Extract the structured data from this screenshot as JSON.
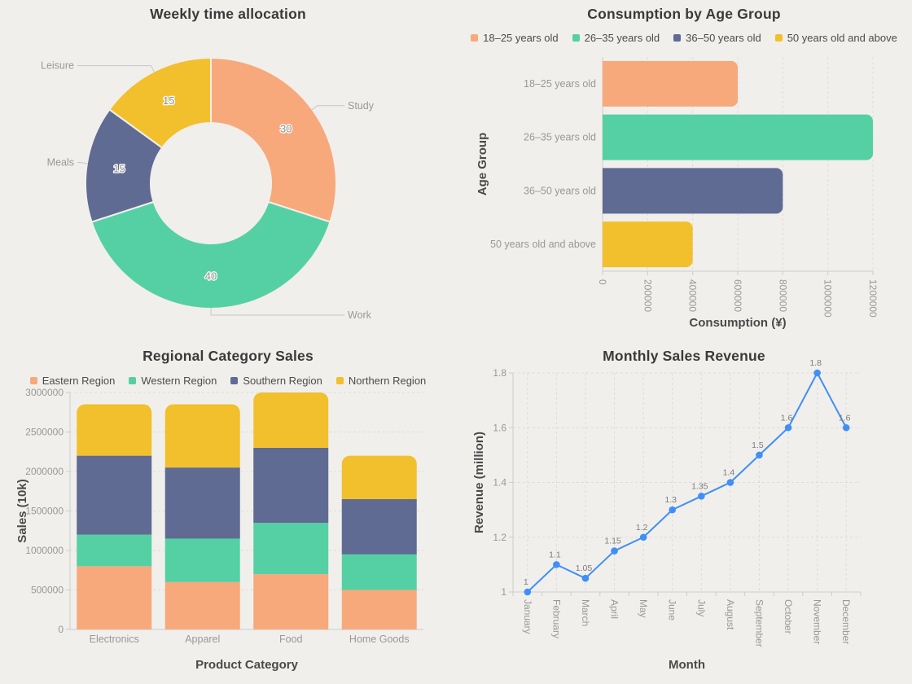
{
  "background": "#f1efec",
  "palette": {
    "peach": "#f7a97c",
    "green": "#55d0a4",
    "slate": "#5f6b92",
    "yellow": "#f2c02c",
    "blue": "#3f8ff7"
  },
  "chart_data": [
    {
      "id": "weekly-time-allocation",
      "type": "pie",
      "donut": true,
      "title": "Weekly time allocation",
      "labels": [
        "Study",
        "Work",
        "Meals",
        "Leisure"
      ],
      "values": [
        30,
        40,
        15,
        15
      ],
      "colors": [
        "#f7a97c",
        "#55d0a4",
        "#5f6b92",
        "#f2c02c"
      ],
      "legend_position": "none"
    },
    {
      "id": "consumption-by-age-group",
      "type": "bar",
      "orientation": "horizontal",
      "title": "Consumption by Age Group",
      "categories": [
        "18–25 years old",
        "26–35 years old",
        "36–50 years old",
        "50 years old and above"
      ],
      "values": [
        600000,
        1200000,
        800000,
        400000
      ],
      "colors": [
        "#f7a97c",
        "#55d0a4",
        "#5f6b92",
        "#f2c02c"
      ],
      "legend": [
        "18–25 years old",
        "26–35 years old",
        "36–50 years old",
        "50 years old and above"
      ],
      "legend_position": "top",
      "xlabel": "Consumption (¥)",
      "ylabel": "Age Group",
      "xlim": [
        0,
        1200000
      ],
      "x_ticks": [
        0,
        200000,
        400000,
        600000,
        800000,
        1000000,
        1200000
      ],
      "grid": true
    },
    {
      "id": "regional-category-sales",
      "type": "bar",
      "stacked": true,
      "title": "Regional Category Sales",
      "categories": [
        "Electronics",
        "Apparel",
        "Food",
        "Home Goods"
      ],
      "series": [
        {
          "name": "Eastern Region",
          "color": "#f7a97c",
          "values": [
            800000,
            600000,
            700000,
            500000
          ]
        },
        {
          "name": "Western Region",
          "color": "#55d0a4",
          "values": [
            400000,
            550000,
            650000,
            450000
          ]
        },
        {
          "name": "Southern Region",
          "color": "#5f6b92",
          "values": [
            1000000,
            900000,
            950000,
            700000
          ]
        },
        {
          "name": "Northern Region",
          "color": "#f2c02c",
          "values": [
            650000,
            800000,
            700000,
            550000
          ]
        }
      ],
      "legend_position": "top",
      "xlabel": "Product Category",
      "ylabel": "Sales (10k)",
      "ylim": [
        0,
        3000000
      ],
      "y_ticks": [
        0,
        500000,
        1000000,
        1500000,
        2000000,
        2500000,
        3000000
      ],
      "grid": true
    },
    {
      "id": "monthly-sales-revenue",
      "type": "line",
      "title": "Monthly Sales Revenue",
      "x": [
        "January",
        "February",
        "March",
        "April",
        "May",
        "June",
        "July",
        "August",
        "September",
        "October",
        "November",
        "December"
      ],
      "values": [
        1,
        1.1,
        1.05,
        1.15,
        1.2,
        1.3,
        1.35,
        1.4,
        1.5,
        1.6,
        1.8,
        1.6
      ],
      "point_labels": [
        "1",
        "1.1",
        "1.05",
        "1.15",
        "1.2",
        "1.3",
        "1.35",
        "1.4",
        "1.5",
        "1.6",
        "1.8",
        "1.6"
      ],
      "color": "#3f8ff7",
      "xlabel": "Month",
      "ylabel": "Revenue (million)",
      "ylim": [
        1,
        1.8
      ],
      "y_ticks": [
        1,
        1.2,
        1.4,
        1.6,
        1.8
      ],
      "grid": true,
      "legend_position": "none"
    }
  ]
}
